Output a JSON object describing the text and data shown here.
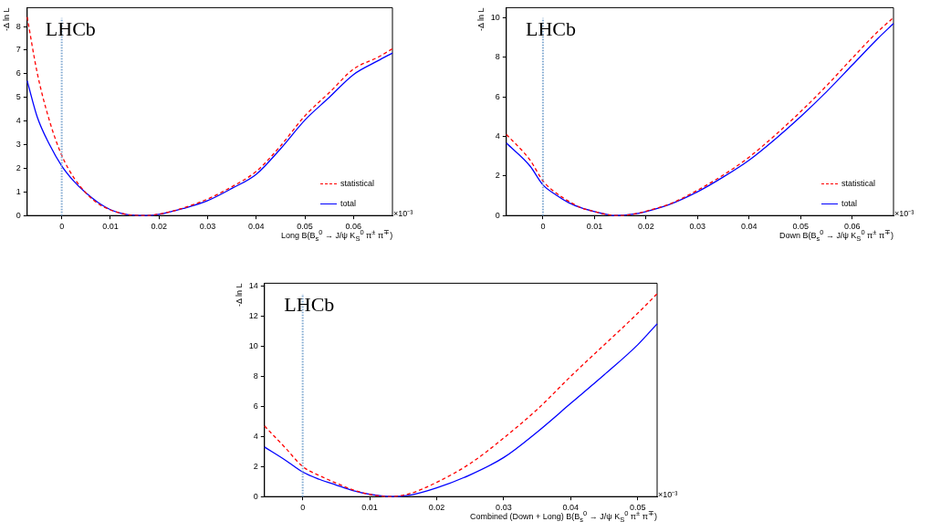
{
  "chart_data": [
    {
      "type": "line",
      "xlabel": "Long B(B$_{s}$$^{0}$ → J/ψ K$_{S}$$^{0}$ π$^{±}$ π$^{∓}$)",
      "ylabel": "-Δ ln L",
      "annotations": [
        "LHCb",
        "×10⁻³"
      ],
      "legend": "bottom right",
      "marker": "none",
      "grid": false,
      "xlim": [
        -0.0071,
        0.068
      ],
      "xticks": [
        0,
        0.01,
        0.02,
        0.03,
        0.04,
        0.05,
        0.06
      ],
      "ylim": [
        0,
        8.8
      ],
      "yticks": [
        0,
        1,
        2,
        3,
        4,
        5,
        6,
        7,
        8
      ],
      "ref_lines": [
        {
          "axis": "x",
          "value": 0,
          "color": "#7fa8d0",
          "line_style": "dotted"
        }
      ],
      "x": [
        -0.0071,
        -0.005,
        -0.0025,
        0,
        0.0025,
        0.005,
        0.0075,
        0.01,
        0.0125,
        0.015,
        0.0175,
        0.02,
        0.025,
        0.03,
        0.035,
        0.04,
        0.045,
        0.05,
        0.055,
        0.06,
        0.065,
        0.068
      ],
      "series": [
        {
          "name": "statistical",
          "color": "#ff0000",
          "line_style": "dashed",
          "values": [
            8.4,
            6.0,
            4.0,
            2.55,
            1.6,
            0.95,
            0.5,
            0.24,
            0.08,
            0.01,
            0,
            0.06,
            0.32,
            0.7,
            1.22,
            1.87,
            2.95,
            4.22,
            5.2,
            6.2,
            6.7,
            7.06
          ]
        },
        {
          "name": "total",
          "color": "#0000ff",
          "line_style": "solid",
          "values": [
            5.7,
            4.15,
            3.0,
            2.1,
            1.45,
            0.95,
            0.55,
            0.25,
            0.08,
            0.01,
            0,
            0.05,
            0.3,
            0.63,
            1.15,
            1.75,
            2.83,
            4.04,
            5.0,
            5.97,
            6.55,
            6.88
          ]
        }
      ]
    },
    {
      "type": "line",
      "xlabel": "Down B(B$_{s}$$^{0}$ → J/ψ K$_{S}$$^{0}$ π$^{±}$ π$^{∓}$)",
      "ylabel": "-Δ ln L",
      "annotations": [
        "LHCb",
        "×10⁻³"
      ],
      "legend": "bottom right",
      "marker": "none",
      "grid": false,
      "xlim": [
        -0.0071,
        0.068
      ],
      "xticks": [
        0,
        0.01,
        0.02,
        0.03,
        0.04,
        0.05,
        0.06
      ],
      "ylim": [
        0,
        10.5
      ],
      "yticks": [
        0,
        2,
        4,
        6,
        8,
        10
      ],
      "ref_lines": [
        {
          "axis": "x",
          "value": 0,
          "color": "#7fa8d0",
          "line_style": "dotted"
        }
      ],
      "x": [
        -0.0071,
        -0.0025,
        0,
        0.0025,
        0.005,
        0.0075,
        0.01,
        0.0125,
        0.014,
        0.0175,
        0.02,
        0.025,
        0.03,
        0.035,
        0.04,
        0.045,
        0.05,
        0.055,
        0.06,
        0.065,
        0.068
      ],
      "series": [
        {
          "name": "statistical",
          "color": "#ff0000",
          "line_style": "dashed",
          "values": [
            4.1,
            2.8,
            1.75,
            1.15,
            0.72,
            0.38,
            0.2,
            0.05,
            0,
            0.07,
            0.22,
            0.63,
            1.28,
            2.05,
            2.95,
            4.05,
            5.25,
            6.55,
            7.95,
            9.3,
            10.0
          ]
        },
        {
          "name": "total",
          "color": "#0000ff",
          "line_style": "solid",
          "values": [
            3.66,
            2.5,
            1.55,
            1.05,
            0.65,
            0.38,
            0.2,
            0.05,
            0,
            0.07,
            0.2,
            0.6,
            1.2,
            1.95,
            2.8,
            3.85,
            5.0,
            6.25,
            7.6,
            8.95,
            9.7
          ]
        }
      ]
    },
    {
      "type": "line",
      "xlabel": "Combined (Down + Long) B(B$_{s}$$^{0}$ → J/ψ K$_{S}$$^{0}$ π$^{±}$ π$^{∓}$)",
      "ylabel": "-Δ ln L",
      "annotations": [
        "LHCb",
        "×10⁻³"
      ],
      "legend": false,
      "marker": "none",
      "grid": false,
      "xlim": [
        -0.0057,
        0.0529
      ],
      "xticks": [
        0,
        0.01,
        0.02,
        0.03,
        0.04,
        0.05
      ],
      "ylim": [
        0,
        14.2
      ],
      "yticks": [
        0,
        2,
        4,
        6,
        8,
        10,
        12,
        14
      ],
      "ref_lines": [
        {
          "axis": "x",
          "value": 0,
          "color": "#7fa8d0",
          "line_style": "dotted"
        }
      ],
      "x": [
        -0.0057,
        -0.0025,
        0,
        0.0025,
        0.005,
        0.0075,
        0.01,
        0.013,
        0.016,
        0.02,
        0.025,
        0.03,
        0.035,
        0.04,
        0.045,
        0.05,
        0.0529
      ],
      "series": [
        {
          "color": "#ff0000",
          "line_style": "dashed",
          "values": [
            4.7,
            3.2,
            2.0,
            1.4,
            0.9,
            0.45,
            0.15,
            0,
            0.2,
            0.95,
            2.2,
            3.9,
            5.8,
            8.0,
            10.1,
            12.2,
            13.5
          ]
        },
        {
          "color": "#0000ff",
          "line_style": "solid",
          "values": [
            3.3,
            2.4,
            1.64,
            1.15,
            0.77,
            0.4,
            0.15,
            0,
            0.1,
            0.58,
            1.45,
            2.6,
            4.3,
            6.2,
            8.1,
            10.1,
            11.5
          ]
        }
      ]
    }
  ]
}
